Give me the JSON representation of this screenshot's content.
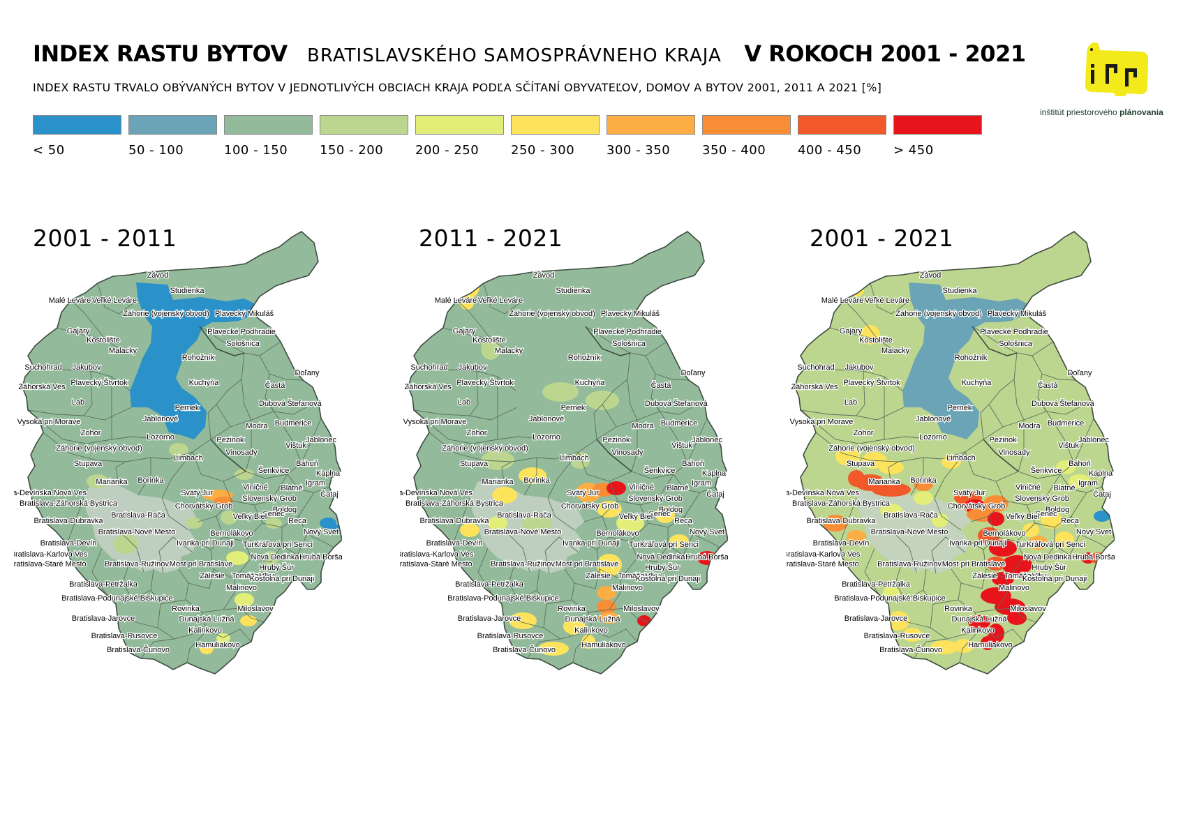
{
  "header": {
    "title_main": "INDEX RASTU BYTOV",
    "title_region": "BRATISLAVSKÉHO SAMOSPRÁVNEHO KRAJA",
    "title_years": "V ROKOCH 2001 - 2021",
    "subtitle": "INDEX RASTU TRVALO OBÝVANÝCH BYTOV V JEDNOTLIVÝCH OBCIACH KRAJA PODĽA SČÍTANÍ OBYVATEĽOV, DOMOV A BYTOV 2001, 2011 A 2021 [%]"
  },
  "logo": {
    "text_regular": "inštitút ",
    "text_mid": "priestorového ",
    "text_bold": "plánovania",
    "color": "#f2ea1a"
  },
  "legend": [
    {
      "label": "< 50",
      "color": "#2b91c9"
    },
    {
      "label": "50 - 100",
      "color": "#6ba4b6"
    },
    {
      "label": "100 - 150",
      "color": "#93bb9b"
    },
    {
      "label": "150 - 200",
      "color": "#bcd58f"
    },
    {
      "label": "200 - 250",
      "color": "#e3ee78"
    },
    {
      "label": "250 - 300",
      "color": "#fde35c"
    },
    {
      "label": "300 - 350",
      "color": "#fcad43"
    },
    {
      "label": "350 - 400",
      "color": "#f98d36"
    },
    {
      "label": "400 - 450",
      "color": "#f2592a"
    },
    {
      "label": "> 450",
      "color": "#e8141b"
    }
  ],
  "maps": [
    {
      "title": "2001 - 2011",
      "military_class": "< 50",
      "default_class": "100 - 150"
    },
    {
      "title": "2011 - 2021",
      "military_class": "100 - 150",
      "default_class": "100 - 150"
    },
    {
      "title": "2001 - 2021",
      "military_class": "50 - 100",
      "default_class": "150 - 200"
    }
  ],
  "places": [
    "Závod",
    "Studienka",
    "Malé Leváre",
    "Veľké Leváre",
    "Záhorie (vojenský obvod)",
    "Plavecký Mikuláš",
    "Gajary",
    "Plavecké Podhradie",
    "Kostolište",
    "Sološnica",
    "Malacky",
    "Rohožník",
    "Suchohrad",
    "Jakubov",
    "Doľany",
    "Kuchyňa",
    "Záhorská Ves",
    "Plavecký Štvrtok",
    "Častá",
    "Lab",
    "Dubová",
    "Štefanová",
    "Pernek",
    "Jablonové",
    "Vysoká pri Morave",
    "Budmerice",
    "Modra",
    "Zohor",
    "Lozorno",
    "Pezinok",
    "Jablonec",
    "Záhorie (vojenský obvod)",
    "Vištuk",
    "Limbach",
    "Vinosady",
    "Stupava",
    "Báhoň",
    "Šenkvice",
    "Kaplna",
    "Marianka",
    "Borinka",
    "Igram",
    "Viničné",
    "Blatné",
    "Bratislava-Devínska Nová Ves",
    "Svätý Jur",
    "Čataj",
    "Slovenský Grob",
    "Bratislava-Záhorská Bystrica",
    "Chorvátsky Grob",
    "Boldog",
    "Senec",
    "Bratislava-Dúbravka",
    "Bratislava-Rača",
    "Veľký Biel",
    "Reca",
    "Bratislava-Nové Mesto",
    "Bernolákovo",
    "Nový Svet",
    "Ivanka pri Dunaji",
    "Bratislava-Devín",
    "Tureň",
    "Kráľová pri Senci",
    "Bratislava-Karlova Ves",
    "Nová Dedinka",
    "Hrubá Borša",
    "Most pri Bratislave",
    "Bratislava-Staré Mesto",
    "Bratislava-Ružinov",
    "Hrubý Šúr",
    "Zálesie",
    "Tomášov",
    "Vlky",
    "Kostolná pri Dunaji",
    "Bratislava-Petržalka",
    "Malinovo",
    "Bratislava-Podunajské Biskupice",
    "Rovinka",
    "Miloslavov",
    "Bratislava-Jarovce",
    "Dunajská Lužná",
    "Kalinkovo",
    "Bratislava-Rusovce",
    "Hamuliakovo",
    "Bratislava-Čunovo"
  ]
}
